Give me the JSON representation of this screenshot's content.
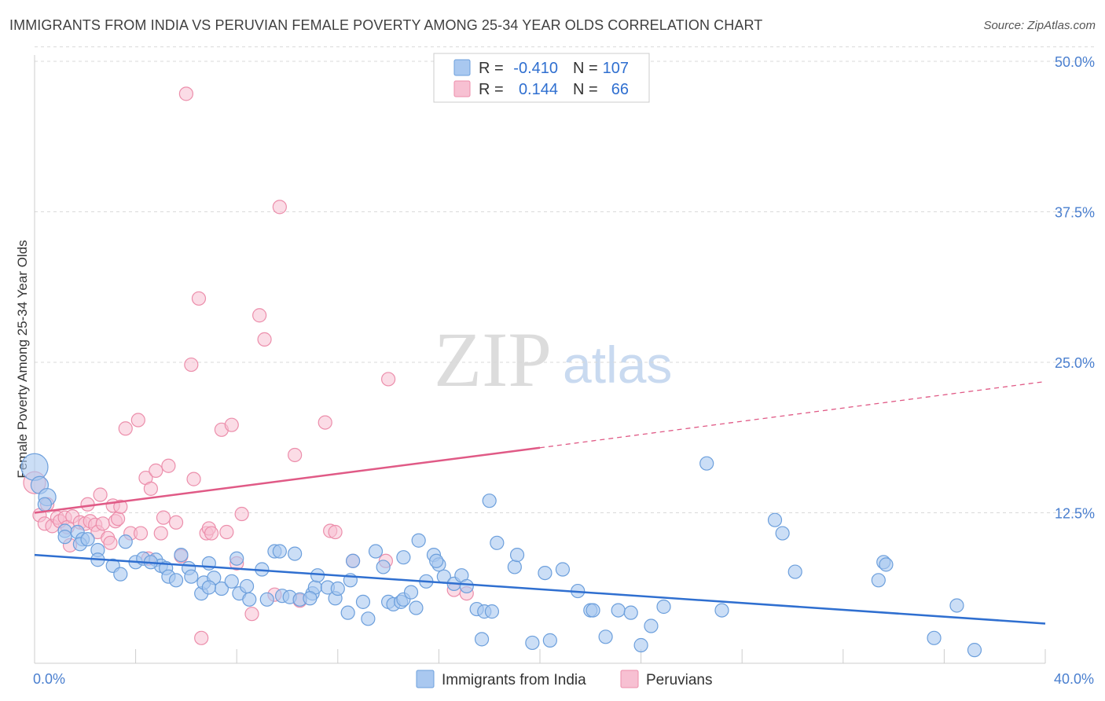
{
  "header": {
    "title": "IMMIGRANTS FROM INDIA VS PERUVIAN FEMALE POVERTY AMONG 25-34 YEAR OLDS CORRELATION CHART",
    "source": "Source: ZipAtlas.com"
  },
  "watermark": {
    "zip": "ZIP",
    "atlas": "atlas"
  },
  "legend_box": {
    "rows": [
      {
        "r_label": "R =",
        "r_value": "-0.410",
        "n_label": "N =",
        "n_value": "107"
      },
      {
        "r_label": "R =",
        "r_value": "0.144",
        "n_label": "N =",
        "n_value": "66"
      }
    ]
  },
  "colors": {
    "india_fill": "#a9c8f0",
    "india_stroke": "#6c9fdc",
    "india_line": "#2f6fd0",
    "peru_fill": "#f7c0d2",
    "peru_stroke": "#ec8eab",
    "peru_line": "#e05a86",
    "tick_label": "#4a7fcf",
    "grid": "#d9d9d9"
  },
  "chart_data": {
    "type": "scatter",
    "title": "IMMIGRANTS FROM INDIA VS PERUVIAN FEMALE POVERTY AMONG 25-34 YEAR OLDS CORRELATION CHART",
    "xlabel": "",
    "ylabel": "Female Poverty Among 25-34 Year Olds",
    "xlim": [
      0,
      40
    ],
    "ylim": [
      0,
      50
    ],
    "x_tick_labels": [
      "0.0%",
      "40.0%"
    ],
    "y_ticks": [
      12.5,
      25,
      37.5,
      50
    ],
    "y_tick_labels": [
      "12.5%",
      "25.0%",
      "37.5%",
      "50.0%"
    ],
    "grid": "horizontal dashed",
    "legend_position": "bottom",
    "series": [
      {
        "name": "Immigrants from India",
        "r": -0.41,
        "n": 107,
        "trend": {
          "x0": 0,
          "y0": 9.0,
          "x1": 40,
          "y1": 3.3
        },
        "points": [
          [
            0.0,
            16.3
          ],
          [
            0.2,
            14.8
          ],
          [
            0.5,
            13.8
          ],
          [
            0.4,
            13.2
          ],
          [
            1.2,
            11.0
          ],
          [
            1.7,
            10.9
          ],
          [
            1.2,
            10.5
          ],
          [
            1.9,
            10.3
          ],
          [
            1.8,
            9.9
          ],
          [
            2.5,
            9.4
          ],
          [
            2.5,
            8.6
          ],
          [
            3.1,
            8.1
          ],
          [
            3.4,
            7.4
          ],
          [
            3.6,
            10.1
          ],
          [
            4.0,
            8.4
          ],
          [
            4.3,
            8.7
          ],
          [
            4.8,
            8.6
          ],
          [
            5.0,
            8.1
          ],
          [
            5.2,
            7.9
          ],
          [
            5.3,
            7.2
          ],
          [
            5.8,
            9.0
          ],
          [
            5.6,
            6.9
          ],
          [
            6.1,
            7.9
          ],
          [
            6.2,
            7.2
          ],
          [
            6.6,
            5.8
          ],
          [
            6.7,
            6.7
          ],
          [
            6.9,
            8.3
          ],
          [
            7.1,
            7.1
          ],
          [
            7.4,
            6.2
          ],
          [
            7.8,
            6.8
          ],
          [
            8.0,
            8.7
          ],
          [
            8.1,
            5.8
          ],
          [
            8.4,
            6.4
          ],
          [
            8.5,
            5.3
          ],
          [
            9.0,
            7.8
          ],
          [
            9.2,
            5.3
          ],
          [
            9.5,
            9.3
          ],
          [
            9.7,
            9.3
          ],
          [
            9.8,
            5.6
          ],
          [
            10.1,
            5.5
          ],
          [
            10.3,
            9.1
          ],
          [
            10.5,
            5.3
          ],
          [
            11.0,
            5.8
          ],
          [
            11.1,
            6.3
          ],
          [
            11.2,
            7.3
          ],
          [
            11.6,
            6.3
          ],
          [
            11.9,
            5.4
          ],
          [
            12.0,
            6.2
          ],
          [
            12.4,
            4.2
          ],
          [
            12.5,
            6.9
          ],
          [
            12.6,
            8.5
          ],
          [
            13.0,
            5.1
          ],
          [
            13.2,
            3.7
          ],
          [
            13.5,
            9.3
          ],
          [
            13.8,
            8.0
          ],
          [
            14.0,
            5.1
          ],
          [
            14.2,
            4.9
          ],
          [
            14.5,
            5.1
          ],
          [
            14.6,
            8.8
          ],
          [
            14.6,
            5.3
          ],
          [
            14.9,
            5.9
          ],
          [
            15.1,
            4.6
          ],
          [
            15.2,
            10.2
          ],
          [
            15.5,
            6.8
          ],
          [
            15.8,
            9.0
          ],
          [
            16.0,
            8.2
          ],
          [
            16.2,
            7.2
          ],
          [
            16.6,
            6.6
          ],
          [
            16.9,
            7.3
          ],
          [
            17.1,
            6.4
          ],
          [
            17.5,
            4.5
          ],
          [
            17.8,
            4.3
          ],
          [
            18.0,
            13.5
          ],
          [
            17.7,
            2.0
          ],
          [
            18.1,
            4.3
          ],
          [
            18.3,
            10.0
          ],
          [
            19.0,
            8.0
          ],
          [
            19.1,
            9.0
          ],
          [
            19.7,
            1.7
          ],
          [
            20.2,
            7.5
          ],
          [
            20.4,
            1.9
          ],
          [
            20.9,
            7.8
          ],
          [
            22.0,
            4.4
          ],
          [
            22.1,
            4.4
          ],
          [
            22.6,
            2.2
          ],
          [
            23.1,
            4.4
          ],
          [
            23.6,
            4.2
          ],
          [
            24.0,
            1.5
          ],
          [
            24.4,
            3.1
          ],
          [
            24.9,
            4.7
          ],
          [
            26.6,
            16.6
          ],
          [
            27.2,
            4.4
          ],
          [
            29.3,
            11.9
          ],
          [
            29.6,
            10.8
          ],
          [
            30.1,
            7.6
          ],
          [
            33.4,
            6.9
          ],
          [
            33.6,
            8.4
          ],
          [
            33.7,
            8.2
          ],
          [
            35.6,
            2.1
          ],
          [
            36.5,
            4.8
          ],
          [
            37.2,
            1.1
          ],
          [
            2.1,
            10.3
          ],
          [
            4.6,
            8.4
          ],
          [
            6.9,
            6.3
          ],
          [
            10.9,
            5.4
          ],
          [
            15.9,
            8.5
          ],
          [
            21.5,
            6.0
          ]
        ]
      },
      {
        "name": "Peruvians",
        "r": 0.144,
        "n": 66,
        "trend": {
          "x0": 0,
          "y0": 12.5,
          "x1": 20,
          "y1": 17.9,
          "dashed_to": {
            "x": 40,
            "y": 23.4
          }
        },
        "points": [
          [
            0.0,
            15.0
          ],
          [
            0.2,
            12.3
          ],
          [
            0.4,
            11.6
          ],
          [
            0.5,
            13.2
          ],
          [
            0.7,
            11.4
          ],
          [
            0.9,
            12.1
          ],
          [
            1.0,
            11.8
          ],
          [
            1.2,
            12.1
          ],
          [
            1.3,
            11.3
          ],
          [
            1.4,
            9.8
          ],
          [
            1.5,
            12.2
          ],
          [
            1.8,
            11.7
          ],
          [
            2.0,
            11.6
          ],
          [
            2.1,
            13.2
          ],
          [
            2.2,
            11.8
          ],
          [
            2.4,
            11.5
          ],
          [
            2.5,
            10.9
          ],
          [
            2.7,
            11.6
          ],
          [
            2.6,
            14.0
          ],
          [
            2.9,
            10.4
          ],
          [
            3.1,
            13.1
          ],
          [
            3.2,
            11.8
          ],
          [
            3.3,
            12.0
          ],
          [
            3.4,
            13.0
          ],
          [
            3.6,
            19.5
          ],
          [
            3.8,
            10.8
          ],
          [
            4.1,
            20.2
          ],
          [
            4.2,
            10.8
          ],
          [
            4.4,
            15.4
          ],
          [
            4.5,
            8.7
          ],
          [
            4.6,
            14.5
          ],
          [
            4.8,
            16.0
          ],
          [
            5.0,
            10.8
          ],
          [
            5.1,
            12.1
          ],
          [
            5.3,
            16.4
          ],
          [
            5.6,
            11.7
          ],
          [
            5.8,
            8.9
          ],
          [
            6.0,
            47.3
          ],
          [
            6.2,
            24.8
          ],
          [
            6.3,
            15.3
          ],
          [
            6.5,
            30.3
          ],
          [
            6.6,
            2.1
          ],
          [
            6.8,
            10.8
          ],
          [
            6.9,
            11.2
          ],
          [
            7.0,
            10.8
          ],
          [
            7.4,
            19.4
          ],
          [
            7.8,
            19.8
          ],
          [
            8.0,
            8.3
          ],
          [
            8.2,
            12.4
          ],
          [
            8.6,
            4.1
          ],
          [
            8.9,
            28.9
          ],
          [
            9.1,
            26.9
          ],
          [
            9.5,
            5.7
          ],
          [
            9.7,
            37.9
          ],
          [
            10.3,
            17.3
          ],
          [
            10.5,
            5.2
          ],
          [
            11.5,
            20.0
          ],
          [
            11.7,
            11.0
          ],
          [
            11.9,
            10.9
          ],
          [
            12.6,
            8.5
          ],
          [
            13.9,
            8.5
          ],
          [
            14.0,
            23.6
          ],
          [
            16.6,
            6.1
          ],
          [
            17.1,
            5.8
          ],
          [
            7.6,
            10.9
          ],
          [
            3.0,
            10.0
          ]
        ]
      }
    ]
  },
  "bottom_legend": {
    "items": [
      {
        "label": "Immigrants from India"
      },
      {
        "label": "Peruvians"
      }
    ]
  }
}
